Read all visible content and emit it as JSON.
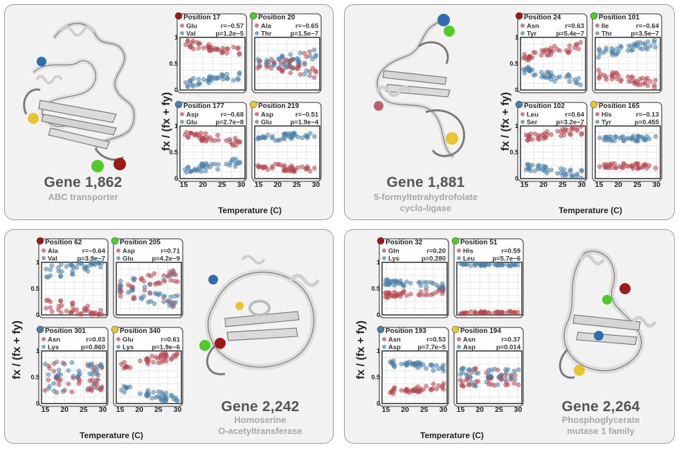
{
  "ylabel": "fx / (fx + fy)",
  "xlabel": "Temperature (C)",
  "x_ticks": [
    15,
    20,
    25,
    30
  ],
  "y_ticks": [
    "0",
    "0.5",
    "1"
  ],
  "colors": {
    "red": "#b5474f",
    "blue": "#4a7fa8",
    "green": "#4fcb2a",
    "yellow": "#e8c431",
    "darkred": "#9a1a1a",
    "panel": "#f2f2f2"
  },
  "genes": [
    {
      "title": "Gene 1,862",
      "description": [
        "ABC transporter"
      ],
      "positions": [
        {
          "label": "Position 17",
          "marker": "darkred",
          "aa1": "Glu",
          "aa2": "Val",
          "r": "r=−0.57",
          "p": "p=1.2e−5"
        },
        {
          "label": "Position 20",
          "marker": "green",
          "aa1": "Ala",
          "aa2": "Thr",
          "r": "r=−0.65",
          "p": "p=1.5e−7"
        },
        {
          "label": "Position 177",
          "marker": "blue",
          "aa1": "Asp",
          "aa2": "Glu",
          "r": "r=−0.68",
          "p": "p=2.7e−8"
        },
        {
          "label": "Position 219",
          "marker": "yellow",
          "aa1": "Asp",
          "aa2": "Glu",
          "r": "r=−0.51",
          "p": "p=1.9e−4"
        }
      ]
    },
    {
      "title": "Gene 1,881",
      "description": [
        "5-formyltetrahydrofolate",
        "cyclo-ligase"
      ],
      "positions": [
        {
          "label": "Position 24",
          "marker": "darkred",
          "aa1": "Asn",
          "aa2": "Tyr",
          "r": "r=0.63",
          "p": "p=5.4e−7"
        },
        {
          "label": "Position 101",
          "marker": "green",
          "aa1": "Ile",
          "aa2": "Thr",
          "r": "r=−0.64",
          "p": "p=3.5e−7"
        },
        {
          "label": "Position 102",
          "marker": "blue",
          "aa1": "Leu",
          "aa2": "Ser",
          "r": "r=0.64",
          "p": "p=3.2e−7"
        },
        {
          "label": "Position 165",
          "marker": "yellow",
          "aa1": "His",
          "aa2": "Tyr",
          "r": "r=−0.13",
          "p": "p=0.455"
        }
      ]
    },
    {
      "title": "Gene 2,242",
      "description": [
        "Homoserine",
        "O-acetyltransferase"
      ],
      "positions": [
        {
          "label": "Position 62",
          "marker": "darkred",
          "aa1": "Ala",
          "aa2": "Val",
          "r": "r=−0.64",
          "p": "p=3.9e−7"
        },
        {
          "label": "Position 205",
          "marker": "green",
          "aa1": "Asp",
          "aa2": "Glu",
          "r": "r=0.71",
          "p": "p=4.2e−9"
        },
        {
          "label": "Position 301",
          "marker": "blue",
          "aa1": "Asn",
          "aa2": "Lys",
          "r": "r=0.03",
          "p": "p=0.860"
        },
        {
          "label": "Position 340",
          "marker": "yellow",
          "aa1": "Glu",
          "aa2": "Lys",
          "r": "r=0.61",
          "p": "p=1.9e−6"
        }
      ]
    },
    {
      "title": "Gene 2,264",
      "description": [
        "Phosphoglycerate",
        "mutase 1 family"
      ],
      "positions": [
        {
          "label": "Position 32",
          "marker": "darkred",
          "aa1": "Gln",
          "aa2": "Lys",
          "r": "r=0.20",
          "p": "p=0.280"
        },
        {
          "label": "Position 51",
          "marker": "green",
          "aa1": "His",
          "aa2": "Leu",
          "r": "r=0.59",
          "p": "p=5.7e−6"
        },
        {
          "label": "Position 193",
          "marker": "blue",
          "aa1": "Asn",
          "aa2": "Asp",
          "r": "r=0.53",
          "p": "p=7.7e−5"
        },
        {
          "label": "Position 194",
          "marker": "yellow",
          "aa1": "Asn",
          "aa2": "Asp",
          "r": "r=0.37",
          "p": "p=0.014"
        }
      ]
    }
  ],
  "chart_data": {
    "type": "scatter",
    "xlabel": "Temperature (C)",
    "ylabel": "fx / (fx + fy)",
    "xlim": [
      14,
      31
    ],
    "ylim": [
      0,
      1
    ],
    "x_ticks": [
      15,
      20,
      25,
      30
    ],
    "y_ticks": [
      0,
      0.5,
      1
    ],
    "grid": true,
    "note_series": "each small plot shows two series: fraction of aa1 (red) and fraction of aa2 (blue), symmetric (blue = 1 - red)",
    "trends": [
      [
        {
          "red": [
            0.88,
            0.72
          ],
          "spread": 0.08
        },
        {
          "red": [
            0.55,
            0.35
          ],
          "spread": 0.12,
          "cross": true
        },
        {
          "red": [
            0.85,
            0.68
          ],
          "spread": 0.08
        },
        {
          "red": [
            0.25,
            0.15
          ],
          "spread": 0.06
        }
      ],
      [
        {
          "red": [
            0.62,
            0.85
          ],
          "spread": 0.1
        },
        {
          "red": [
            0.3,
            0.12
          ],
          "spread": 0.08
        },
        {
          "red": [
            0.78,
            0.92
          ],
          "spread": 0.08
        },
        {
          "red": [
            0.24,
            0.24
          ],
          "spread": 0.05
        }
      ],
      [
        {
          "red": [
            0.2,
            0.02
          ],
          "spread": 0.12
        },
        {
          "red": [
            0.55,
            0.75
          ],
          "spread": 0.12,
          "cross": true
        },
        {
          "red": [
            0.35,
            0.38
          ],
          "spread": 0.15,
          "cross": true
        },
        {
          "red": [
            0.72,
            0.92
          ],
          "spread": 0.08
        }
      ],
      [
        {
          "red": [
            0.38,
            0.45
          ],
          "spread": 0.06
        },
        {
          "red": [
            0.04,
            0.06
          ],
          "spread": 0.02
        },
        {
          "red": [
            0.22,
            0.32
          ],
          "spread": 0.07
        },
        {
          "red": [
            0.42,
            0.45
          ],
          "spread": 0.1,
          "cross": true
        }
      ]
    ]
  }
}
